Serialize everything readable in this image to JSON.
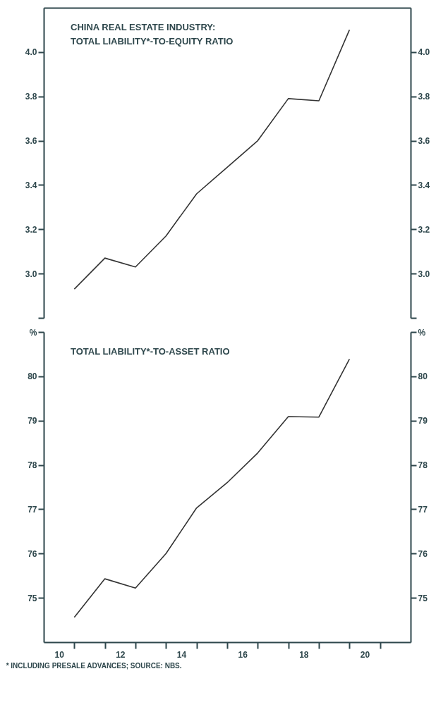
{
  "chart_data": [
    {
      "type": "line",
      "title": "CHINA REAL ESTATE INDUSTRY:\nTOTAL LIABILITY*-TO-EQUITY RATIO",
      "color": "#333333",
      "grid": false,
      "tick_labels": "y",
      "x": [
        11,
        12,
        13,
        14,
        15,
        16,
        17,
        18,
        19,
        20
      ],
      "values": [
        2.93,
        3.07,
        3.03,
        3.17,
        3.36,
        3.48,
        3.6,
        3.79,
        3.78,
        4.1
      ],
      "xlim": [
        10,
        22
      ],
      "ylim": [
        2.8,
        4.2
      ],
      "yticks": [
        {
          "value": 2.8,
          "label": null
        },
        {
          "value": 3,
          "label": "3.0"
        },
        3.2,
        3.4,
        3.6,
        3.8,
        {
          "value": 4,
          "label": "4.0"
        }
      ],
      "y2lim": [
        2.8,
        4.2
      ],
      "y2ticks": [
        {
          "value": 2.8,
          "label": null
        },
        {
          "value": 3,
          "label": "3.0"
        },
        3.2,
        3.4,
        3.6,
        3.8,
        {
          "value": 4,
          "label": "4.0"
        }
      ]
    },
    {
      "type": "line",
      "title": "TOTAL LIABILITY*-TO-ASSET RATIO",
      "color": "#333333",
      "grid": false,
      "x": [
        11,
        12,
        13,
        14,
        15,
        16,
        17,
        18,
        19,
        20
      ],
      "values": [
        74.56,
        75.43,
        75.22,
        76.0,
        77.03,
        77.6,
        78.27,
        79.09,
        79.08,
        80.39
      ],
      "xlim": [
        10,
        22
      ],
      "ylim": [
        74,
        81
      ],
      "xticks": [
        {
          "value": 10.5,
          "label": "10"
        },
        {
          "value": 11,
          "label": null
        },
        {
          "value": 12,
          "label": null
        },
        {
          "value": 12.5,
          "label": "12"
        },
        {
          "value": 13,
          "label": null
        },
        {
          "value": 14,
          "label": null
        },
        {
          "value": 14.5,
          "label": "14"
        },
        {
          "value": 15,
          "label": null
        },
        {
          "value": 16,
          "label": null
        },
        {
          "value": 16.5,
          "label": "16"
        },
        {
          "value": 17,
          "label": null
        },
        {
          "value": 18,
          "label": null
        },
        {
          "value": 18.5,
          "label": "18"
        },
        {
          "value": 19,
          "label": null
        },
        {
          "value": 20,
          "label": null
        },
        {
          "value": 20.5,
          "label": "20"
        },
        {
          "value": 21,
          "label": null
        }
      ],
      "yticks": [
        75,
        76,
        77,
        78,
        79,
        80,
        {
          "value": 81,
          "label": "%"
        }
      ],
      "y2lim": [
        74,
        81
      ],
      "y2ticks": [
        75,
        76,
        77,
        78,
        79,
        80,
        {
          "value": 81,
          "label": "%"
        }
      ],
      "annotations": [
        "* INCLUDING PRESALE ADVANCES; SOURCE: NBS."
      ]
    }
  ]
}
